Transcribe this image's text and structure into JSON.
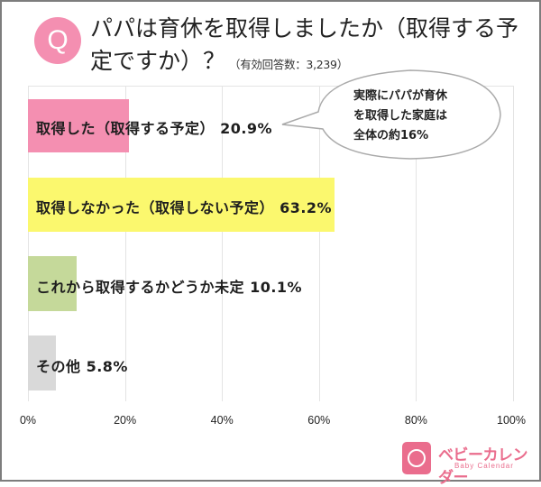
{
  "header": {
    "q_badge": "Q",
    "title": "パパは育休を取得しましたか（取得する予定ですか）？",
    "subtitle": "（有効回答数：3,239）"
  },
  "callout": {
    "lines": [
      "実際にパパが育休",
      "を取得した家庭は",
      "全体の約16%"
    ]
  },
  "bars": [
    {
      "label": "取得した（取得する予定） 20.9%",
      "value": 20.9,
      "color": "#f48fb1"
    },
    {
      "label": "取得しなかった（取得しない予定） 63.2%",
      "value": 63.2,
      "color": "#fbf86e"
    },
    {
      "label": "これから取得するかどうか未定 10.1%",
      "value": 10.1,
      "color": "#c5d99a"
    },
    {
      "label": "その他 5.8%",
      "value": 5.8,
      "color": "#d9d9d9"
    }
  ],
  "axis": {
    "ticks": [
      "0%",
      "20%",
      "40%",
      "60%",
      "80%",
      "100%"
    ]
  },
  "logo": {
    "jp": "ベビーカレンダー",
    "en": "Baby Calendar"
  },
  "chart_data": {
    "type": "bar",
    "orientation": "horizontal",
    "title": "パパは育休を取得しましたか（取得する予定ですか）？",
    "subtitle": "（有効回答数：3,239）",
    "categories": [
      "取得した（取得する予定）",
      "取得しなかった（取得しない予定）",
      "これから取得するかどうか未定",
      "その他"
    ],
    "values": [
      20.9,
      63.2,
      10.1,
      5.8
    ],
    "unit": "%",
    "colors": [
      "#f48fb1",
      "#fbf86e",
      "#c5d99a",
      "#d9d9d9"
    ],
    "xlabel": "",
    "ylabel": "",
    "xlim": [
      0,
      100
    ],
    "xticks": [
      "0%",
      "20%",
      "40%",
      "60%",
      "80%",
      "100%"
    ],
    "grid": true,
    "legend": null,
    "annotations": [
      "実際にパパが育休を取得した家庭は全体の約16%"
    ]
  }
}
